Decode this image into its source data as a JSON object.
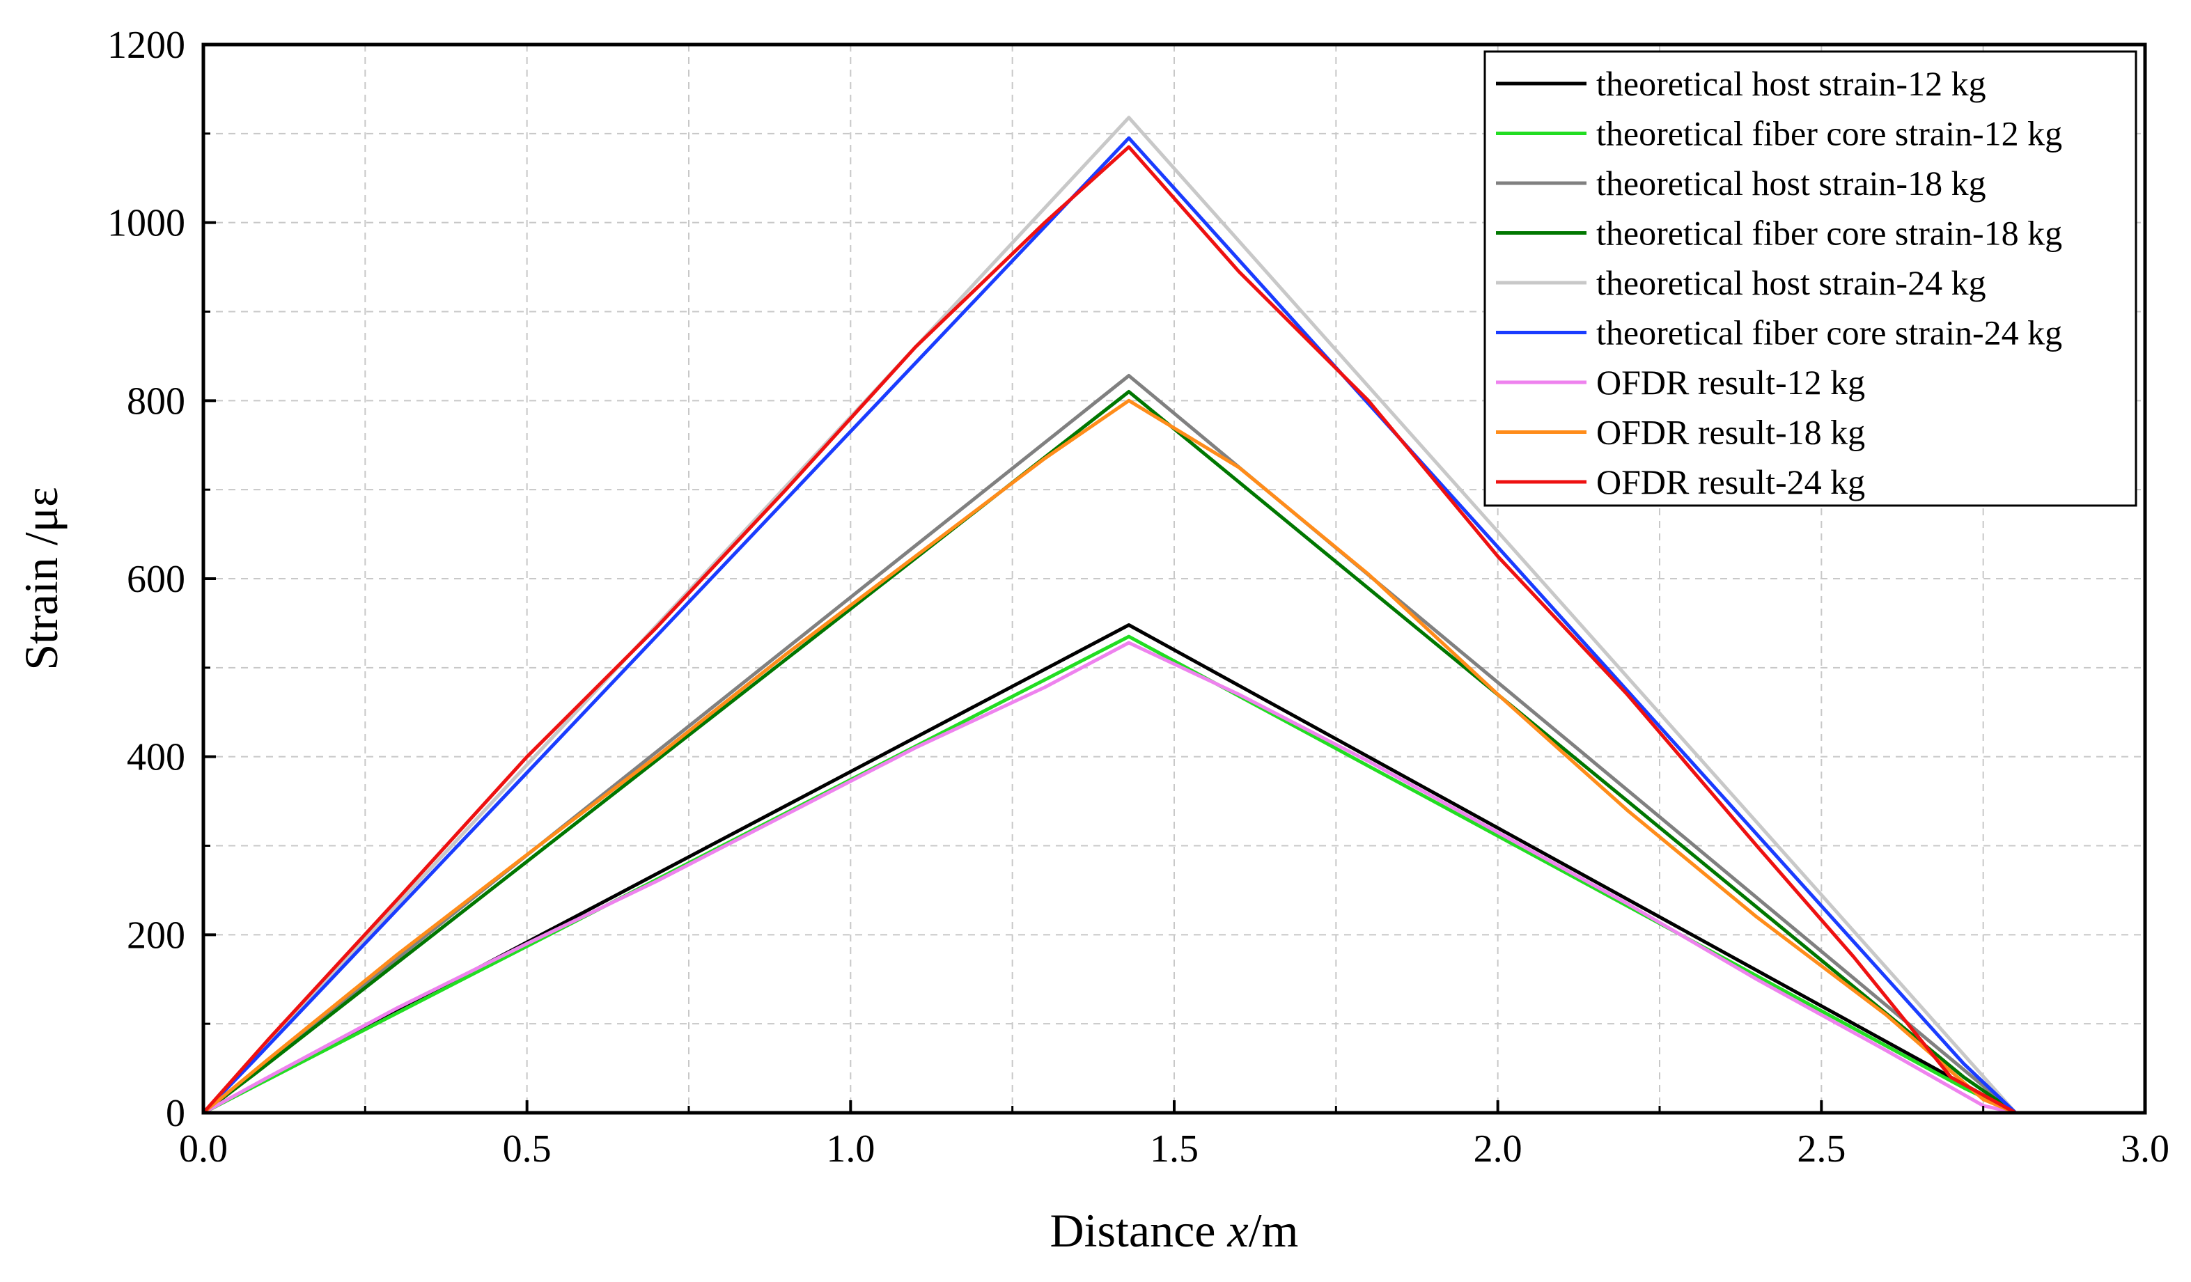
{
  "chart_data": {
    "type": "line",
    "title": "",
    "xlabel_prefix": "Distance ",
    "xlabel_var": "x",
    "xlabel_suffix": "/m",
    "ylabel": "Strain /με",
    "xlim": [
      0.0,
      3.0
    ],
    "ylim": [
      0,
      1200
    ],
    "x_ticks": [
      0.0,
      0.5,
      1.0,
      1.5,
      2.0,
      2.5,
      3.0
    ],
    "x_tick_labels": [
      "0.0",
      "0.5",
      "1.0",
      "1.5",
      "2.0",
      "2.5",
      "3.0"
    ],
    "y_ticks": [
      0,
      200,
      400,
      600,
      800,
      1000,
      1200
    ],
    "y_tick_labels": [
      "0",
      "200",
      "400",
      "600",
      "800",
      "1000",
      "1200"
    ],
    "grid": true,
    "legend_position": "top-right",
    "series": [
      {
        "name": "theoretical host strain-12 kg",
        "color": "#000000",
        "x": [
          0,
          1.43,
          2.8
        ],
        "y": [
          0,
          548,
          0
        ]
      },
      {
        "name": "theoretical fiber core strain-12 kg",
        "color": "#22dd22",
        "x": [
          0,
          0.08,
          1.43,
          2.72,
          2.8
        ],
        "y": [
          0,
          30,
          535,
          28,
          0
        ]
      },
      {
        "name": "theoretical host strain-18 kg",
        "color": "#808080",
        "x": [
          0,
          1.43,
          2.8
        ],
        "y": [
          0,
          828,
          0
        ]
      },
      {
        "name": "theoretical fiber core strain-18 kg",
        "color": "#007700",
        "x": [
          0,
          0.08,
          1.43,
          2.72,
          2.8
        ],
        "y": [
          0,
          44,
          810,
          40,
          0
        ]
      },
      {
        "name": "theoretical host strain-24 kg",
        "color": "#c8c8c8",
        "x": [
          0,
          1.43,
          2.8
        ],
        "y": [
          0,
          1118,
          0
        ]
      },
      {
        "name": "theoretical fiber core strain-24 kg",
        "color": "#1a3cff",
        "x": [
          0,
          0.08,
          1.43,
          2.72,
          2.8
        ],
        "y": [
          0,
          60,
          1095,
          55,
          0
        ]
      },
      {
        "name": "OFDR result-12 kg",
        "color": "#ee82ee",
        "x": [
          0,
          0.1,
          0.3,
          0.5,
          0.7,
          0.9,
          1.1,
          1.3,
          1.43,
          1.6,
          1.8,
          2.0,
          2.2,
          2.4,
          2.6,
          2.75,
          2.8
        ],
        "y": [
          0,
          40,
          118,
          190,
          260,
          335,
          410,
          478,
          528,
          470,
          395,
          315,
          235,
          150,
          70,
          8,
          0
        ]
      },
      {
        "name": "OFDR result-18 kg",
        "color": "#ff8c1a",
        "x": [
          0,
          0.1,
          0.3,
          0.5,
          0.7,
          0.9,
          1.1,
          1.3,
          1.43,
          1.6,
          1.8,
          2.0,
          2.2,
          2.4,
          2.6,
          2.75,
          2.8
        ],
        "y": [
          0,
          60,
          178,
          290,
          400,
          515,
          625,
          735,
          800,
          725,
          605,
          470,
          340,
          220,
          110,
          15,
          0
        ]
      },
      {
        "name": "OFDR result-24 kg",
        "color": "#ee1111",
        "x": [
          0,
          0.1,
          0.3,
          0.5,
          0.7,
          0.9,
          1.1,
          1.3,
          1.43,
          1.6,
          1.8,
          2.0,
          2.2,
          2.4,
          2.55,
          2.7,
          2.8
        ],
        "y": [
          0,
          82,
          240,
          400,
          545,
          700,
          860,
          1000,
          1085,
          945,
          800,
          625,
          470,
          300,
          175,
          40,
          0
        ]
      }
    ]
  }
}
